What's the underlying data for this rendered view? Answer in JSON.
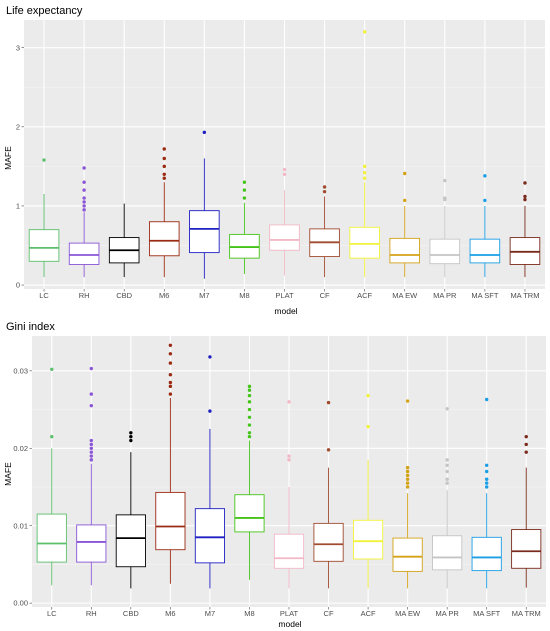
{
  "chart_data": [
    {
      "type": "box",
      "title": "Life expectancy",
      "xlabel": "model",
      "ylabel": "MAFE",
      "ylim": [
        -0.05,
        3.35
      ],
      "yticks": [
        0,
        1,
        2,
        3
      ],
      "grid": true,
      "categories": [
        "LC",
        "RH",
        "CBD",
        "M6",
        "M7",
        "M8",
        "PLAT",
        "CF",
        "ACF",
        "MA EW",
        "MA PR",
        "MA SFT",
        "MA TRM"
      ],
      "boxes": [
        {
          "name": "LC",
          "color": "#5cbf6b",
          "min": 0.1,
          "q1": 0.3,
          "median": 0.47,
          "q3": 0.7,
          "max": 1.15,
          "outliers": [
            1.58
          ]
        },
        {
          "name": "RH",
          "color": "#8a55d6",
          "min": 0.1,
          "q1": 0.26,
          "median": 0.38,
          "q3": 0.53,
          "max": 0.92,
          "outliers": [
            0.95,
            1.0,
            1.05,
            1.1,
            1.2,
            1.3,
            1.48
          ]
        },
        {
          "name": "CBD",
          "color": "#000000",
          "min": 0.1,
          "q1": 0.28,
          "median": 0.44,
          "q3": 0.6,
          "max": 1.03,
          "outliers": []
        },
        {
          "name": "M6",
          "color": "#9b2a12",
          "min": 0.1,
          "q1": 0.37,
          "median": 0.56,
          "q3": 0.8,
          "max": 1.3,
          "outliers": [
            1.35,
            1.4,
            1.5,
            1.6,
            1.72
          ]
        },
        {
          "name": "M7",
          "color": "#1f1fc2",
          "min": 0.08,
          "q1": 0.41,
          "median": 0.71,
          "q3": 0.94,
          "max": 1.6,
          "outliers": [
            1.93
          ]
        },
        {
          "name": "M8",
          "color": "#44c41a",
          "min": 0.14,
          "q1": 0.34,
          "median": 0.48,
          "q3": 0.64,
          "max": 1.04,
          "outliers": [
            1.1,
            1.2,
            1.3
          ]
        },
        {
          "name": "PLAT",
          "color": "#f2b8c6",
          "min": 0.12,
          "q1": 0.44,
          "median": 0.57,
          "q3": 0.76,
          "max": 1.2,
          "outliers": [
            1.4,
            1.46
          ]
        },
        {
          "name": "CF",
          "color": "#a04a2e",
          "min": 0.1,
          "q1": 0.36,
          "median": 0.54,
          "q3": 0.71,
          "max": 1.12,
          "outliers": [
            1.18,
            1.24
          ]
        },
        {
          "name": "ACF",
          "color": "#f2f23a",
          "min": 0.1,
          "q1": 0.34,
          "median": 0.52,
          "q3": 0.73,
          "max": 1.3,
          "outliers": [
            1.35,
            1.42,
            1.5,
            3.2
          ]
        },
        {
          "name": "MA EW",
          "color": "#d4a217",
          "min": 0.1,
          "q1": 0.28,
          "median": 0.38,
          "q3": 0.59,
          "max": 1.0,
          "outliers": [
            1.07,
            1.41
          ]
        },
        {
          "name": "MA PR",
          "color": "#c4c4c4",
          "min": 0.1,
          "q1": 0.27,
          "median": 0.38,
          "q3": 0.58,
          "max": 1.0,
          "outliers": [
            1.08,
            1.1,
            1.32
          ]
        },
        {
          "name": "MA SFT",
          "color": "#1a9ee6",
          "min": 0.1,
          "q1": 0.28,
          "median": 0.38,
          "q3": 0.58,
          "max": 1.0,
          "outliers": [
            1.07,
            1.38
          ]
        },
        {
          "name": "MA TRM",
          "color": "#7a2a1a",
          "min": 0.1,
          "q1": 0.26,
          "median": 0.42,
          "q3": 0.6,
          "max": 1.0,
          "outliers": [
            1.08,
            1.12,
            1.29
          ]
        }
      ]
    },
    {
      "type": "box",
      "title": "Gini index",
      "xlabel": "model",
      "ylabel": "MAFE",
      "ylim": [
        -0.0005,
        0.0345
      ],
      "yticks": [
        0.0,
        0.01,
        0.02,
        0.03
      ],
      "ytick_labels": [
        "0.00",
        "0.01",
        "0.02",
        "0.03"
      ],
      "grid": true,
      "categories": [
        "LC",
        "RH",
        "CBD",
        "M6",
        "M7",
        "M8",
        "PLAT",
        "CF",
        "ACF",
        "MA EW",
        "MA PR",
        "MA SFT",
        "MA TRM"
      ],
      "boxes": [
        {
          "name": "LC",
          "color": "#5cbf6b",
          "min": 0.0023,
          "q1": 0.0053,
          "median": 0.0077,
          "q3": 0.0115,
          "max": 0.02,
          "outliers": [
            0.0215,
            0.0302
          ]
        },
        {
          "name": "RH",
          "color": "#8a55d6",
          "min": 0.0023,
          "q1": 0.0053,
          "median": 0.0079,
          "q3": 0.0101,
          "max": 0.018,
          "outliers": [
            0.0185,
            0.019,
            0.0195,
            0.02,
            0.0205,
            0.021,
            0.0255,
            0.027,
            0.0303
          ]
        },
        {
          "name": "CBD",
          "color": "#000000",
          "min": 0.0019,
          "q1": 0.0047,
          "median": 0.0084,
          "q3": 0.0114,
          "max": 0.0195,
          "outliers": [
            0.021,
            0.0215,
            0.022
          ]
        },
        {
          "name": "M6",
          "color": "#9b2a12",
          "min": 0.0025,
          "q1": 0.0069,
          "median": 0.0099,
          "q3": 0.0143,
          "max": 0.0265,
          "outliers": [
            0.027,
            0.028,
            0.0285,
            0.0295,
            0.031,
            0.0322,
            0.0333
          ]
        },
        {
          "name": "M7",
          "color": "#1f1fc2",
          "min": 0.0019,
          "q1": 0.0052,
          "median": 0.0085,
          "q3": 0.0122,
          "max": 0.0225,
          "outliers": [
            0.0248,
            0.0318
          ]
        },
        {
          "name": "M8",
          "color": "#44c41a",
          "min": 0.003,
          "q1": 0.0092,
          "median": 0.011,
          "q3": 0.014,
          "max": 0.021,
          "outliers": [
            0.0215,
            0.022,
            0.023,
            0.024,
            0.025,
            0.026,
            0.0268,
            0.0275,
            0.028
          ]
        },
        {
          "name": "PLAT",
          "color": "#f2b8c6",
          "min": 0.0019,
          "q1": 0.0045,
          "median": 0.0058,
          "q3": 0.0089,
          "max": 0.015,
          "outliers": [
            0.0185,
            0.019,
            0.026
          ]
        },
        {
          "name": "CF",
          "color": "#a04a2e",
          "min": 0.0019,
          "q1": 0.0054,
          "median": 0.0076,
          "q3": 0.0103,
          "max": 0.0175,
          "outliers": [
            0.0198,
            0.0259
          ]
        },
        {
          "name": "ACF",
          "color": "#f2f23a",
          "min": 0.0019,
          "q1": 0.0057,
          "median": 0.008,
          "q3": 0.0107,
          "max": 0.0185,
          "outliers": [
            0.0228,
            0.0268
          ]
        },
        {
          "name": "MA EW",
          "color": "#d4a217",
          "min": 0.0019,
          "q1": 0.0041,
          "median": 0.006,
          "q3": 0.0084,
          "max": 0.0142,
          "outliers": [
            0.015,
            0.0155,
            0.016,
            0.0165,
            0.017,
            0.0175,
            0.0261
          ]
        },
        {
          "name": "MA PR",
          "color": "#c4c4c4",
          "min": 0.0019,
          "q1": 0.0043,
          "median": 0.0059,
          "q3": 0.0087,
          "max": 0.0146,
          "outliers": [
            0.0155,
            0.016,
            0.017,
            0.0178,
            0.0185,
            0.0251
          ]
        },
        {
          "name": "MA SFT",
          "color": "#1a9ee6",
          "min": 0.0019,
          "q1": 0.0042,
          "median": 0.0059,
          "q3": 0.0085,
          "max": 0.0142,
          "outliers": [
            0.015,
            0.0155,
            0.016,
            0.017,
            0.0178,
            0.0263
          ]
        },
        {
          "name": "MA TRM",
          "color": "#7a2a1a",
          "min": 0.002,
          "q1": 0.0045,
          "median": 0.0067,
          "q3": 0.0095,
          "max": 0.0175,
          "outliers": [
            0.0195,
            0.0205,
            0.0215
          ]
        }
      ]
    }
  ]
}
